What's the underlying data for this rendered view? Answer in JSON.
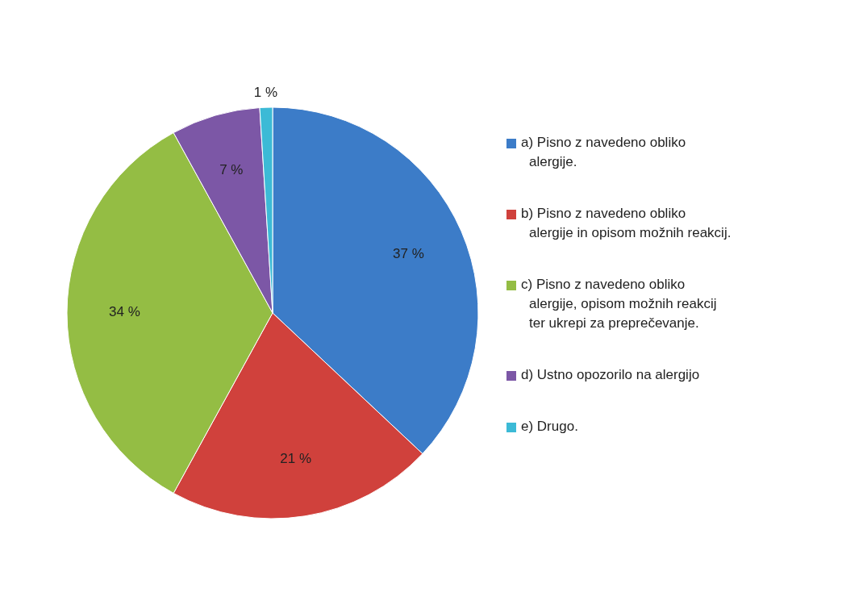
{
  "chart_data": {
    "type": "pie",
    "categories": [
      "a) Pisno z navedeno obliko alergije.",
      "b) Pisno z navedeno obliko alergije in opisom možnih reakcij.",
      "c) Pisno z navedeno obliko alergije, opisom možnih reakcij ter ukrepi za preprečevanje.",
      "d) Ustno opozorilo na alergijo",
      "e) Drugo."
    ],
    "values": [
      37,
      21,
      34,
      7,
      1
    ],
    "colors": [
      "#3c7cc8",
      "#d0413c",
      "#94bd44",
      "#7c57a6",
      "#3cbad6"
    ],
    "value_labels": [
      "37 %",
      "21 %",
      "34 %",
      "7 %",
      "1 %"
    ],
    "legend": "right"
  }
}
